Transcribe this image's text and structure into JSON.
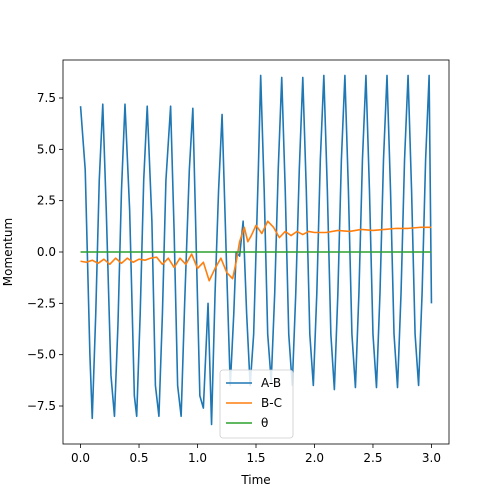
{
  "chart_data": {
    "type": "line",
    "title": "",
    "xlabel": "Time",
    "ylabel": "Momentum",
    "xlim": [
      -0.15,
      3.15
    ],
    "ylim": [
      -9.35,
      9.35
    ],
    "x_ticks": [
      0.0,
      0.5,
      1.0,
      1.5,
      2.0,
      2.5,
      3.0
    ],
    "x_tick_labels": [
      "0.0",
      "0.5",
      "1.0",
      "1.5",
      "2.0",
      "2.5",
      "3.0"
    ],
    "y_ticks": [
      -7.5,
      -5.0,
      -2.5,
      0.0,
      2.5,
      5.0,
      7.5
    ],
    "y_tick_labels": [
      "−7.5",
      "−5.0",
      "−2.5",
      "0.0",
      "2.5",
      "5.0",
      "7.5"
    ],
    "grid": false,
    "legend": {
      "placement": "lower-center"
    },
    "series": [
      {
        "name": "A-B",
        "color": "#1f77b4",
        "x": [
          0.0,
          0.04,
          0.08,
          0.1,
          0.13,
          0.16,
          0.19,
          0.22,
          0.26,
          0.29,
          0.32,
          0.35,
          0.38,
          0.42,
          0.46,
          0.48,
          0.51,
          0.54,
          0.57,
          0.61,
          0.64,
          0.67,
          0.7,
          0.73,
          0.77,
          0.8,
          0.83,
          0.86,
          0.89,
          0.93,
          0.96,
          0.99,
          1.02,
          1.05,
          1.09,
          1.12,
          1.15,
          1.18,
          1.21,
          1.25,
          1.28,
          1.31,
          1.33,
          1.36,
          1.39,
          1.42,
          1.45,
          1.48,
          1.5,
          1.52,
          1.54,
          1.57,
          1.6,
          1.63,
          1.66,
          1.69,
          1.72,
          1.75,
          1.78,
          1.81,
          1.84,
          1.87,
          1.9,
          1.93,
          1.96,
          1.99,
          2.02,
          2.05,
          2.08,
          2.11,
          2.14,
          2.17,
          2.2,
          2.23,
          2.26,
          2.29,
          2.32,
          2.35,
          2.38,
          2.41,
          2.44,
          2.47,
          2.5,
          2.53,
          2.56,
          2.59,
          2.62,
          2.65,
          2.68,
          2.71,
          2.74,
          2.77,
          2.8,
          2.83,
          2.86,
          2.89,
          2.92,
          2.95,
          2.98,
          3.0
        ],
        "y": [
          7.1,
          4.0,
          -5.0,
          -8.1,
          -3.0,
          3.5,
          7.2,
          2.0,
          -6.0,
          -8.0,
          -3.5,
          3.0,
          7.2,
          2.0,
          -7.0,
          -8.0,
          -3.0,
          3.5,
          7.1,
          1.5,
          -6.5,
          -8.0,
          -3.0,
          3.5,
          7.1,
          1.0,
          -6.5,
          -8.0,
          -2.5,
          4.0,
          7.0,
          0.0,
          -7.0,
          -7.6,
          -2.5,
          -8.4,
          -2.0,
          3.0,
          6.7,
          -1.0,
          -6.5,
          -3.0,
          0.0,
          -0.2,
          1.5,
          -3.0,
          -6.5,
          -4.0,
          0.0,
          4.0,
          8.6,
          3.0,
          -4.0,
          -6.3,
          -2.0,
          4.0,
          8.5,
          3.0,
          -4.0,
          -6.5,
          -2.0,
          4.0,
          8.5,
          3.0,
          -4.0,
          -6.5,
          -2.0,
          4.5,
          8.6,
          3.0,
          -4.0,
          -6.7,
          -2.0,
          4.5,
          8.6,
          3.0,
          -4.0,
          -6.6,
          -2.0,
          4.5,
          8.6,
          3.0,
          -4.0,
          -6.6,
          -2.0,
          4.5,
          8.6,
          3.0,
          -4.0,
          -6.6,
          -2.0,
          4.5,
          8.6,
          3.0,
          -4.0,
          -6.5,
          -2.0,
          4.5,
          8.6,
          -2.5
        ]
      },
      {
        "name": "B-C",
        "color": "#ff7f0e",
        "x": [
          0.0,
          0.05,
          0.1,
          0.15,
          0.2,
          0.25,
          0.3,
          0.35,
          0.4,
          0.45,
          0.5,
          0.55,
          0.6,
          0.65,
          0.7,
          0.75,
          0.8,
          0.85,
          0.9,
          0.95,
          1.0,
          1.05,
          1.1,
          1.15,
          1.2,
          1.25,
          1.3,
          1.33,
          1.36,
          1.4,
          1.43,
          1.46,
          1.5,
          1.55,
          1.6,
          1.65,
          1.7,
          1.75,
          1.8,
          1.85,
          1.9,
          1.95,
          2.0,
          2.1,
          2.2,
          2.3,
          2.4,
          2.5,
          2.6,
          2.7,
          2.8,
          2.9,
          3.0
        ],
        "y": [
          -0.45,
          -0.5,
          -0.4,
          -0.55,
          -0.35,
          -0.6,
          -0.3,
          -0.55,
          -0.3,
          -0.5,
          -0.35,
          -0.4,
          -0.3,
          -0.25,
          -0.6,
          -0.3,
          -0.75,
          -0.3,
          -0.6,
          -0.1,
          -0.8,
          -0.5,
          -1.4,
          -0.8,
          -0.3,
          -1.0,
          -1.3,
          -0.5,
          0.5,
          1.2,
          0.5,
          0.8,
          1.3,
          0.9,
          1.5,
          1.2,
          0.7,
          1.0,
          0.8,
          1.0,
          0.85,
          1.0,
          0.95,
          0.95,
          1.05,
          1.0,
          1.1,
          1.05,
          1.1,
          1.15,
          1.15,
          1.2,
          1.2
        ]
      },
      {
        "name": "θ",
        "color": "#2ca02c",
        "x": [
          0.0,
          3.0
        ],
        "y": [
          0.0,
          0.0
        ]
      }
    ]
  }
}
